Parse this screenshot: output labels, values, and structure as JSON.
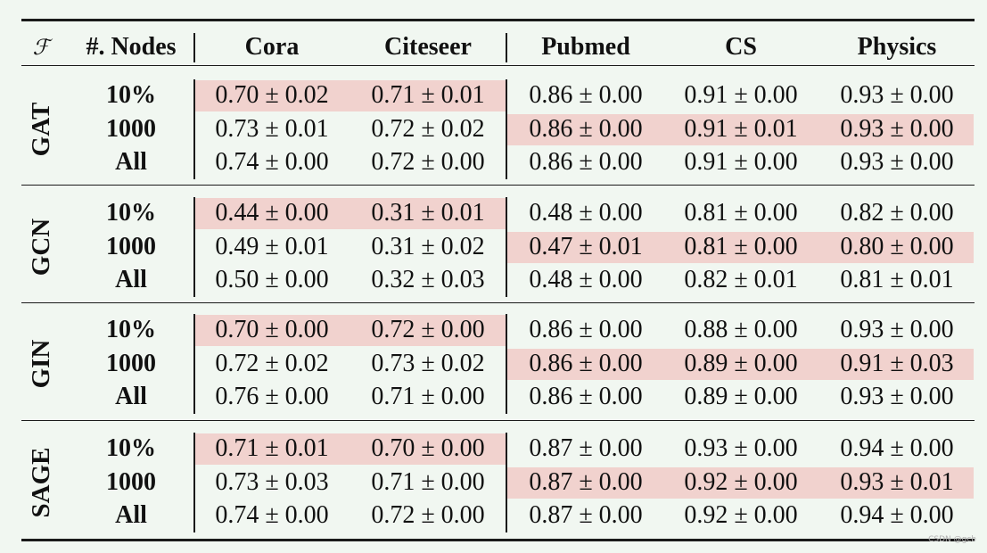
{
  "header": {
    "f_symbol": "ℱ",
    "nodes_label": "#. Nodes",
    "datasets": [
      "Cora",
      "Citeseer",
      "Pubmed",
      "CS",
      "Physics"
    ]
  },
  "groups": [
    {
      "model": "GAT",
      "rows": [
        {
          "nodes": "10%",
          "values": [
            "0.70 ± 0.02",
            "0.71 ± 0.01",
            "0.86 ± 0.00",
            "0.91 ± 0.00",
            "0.93 ± 0.00"
          ]
        },
        {
          "nodes": "1000",
          "values": [
            "0.73 ± 0.01",
            "0.72 ± 0.02",
            "0.86 ± 0.00",
            "0.91 ± 0.01",
            "0.93 ± 0.00"
          ]
        },
        {
          "nodes": "All",
          "values": [
            "0.74 ± 0.00",
            "0.72 ± 0.00",
            "0.86 ± 0.00",
            "0.91 ± 0.00",
            "0.93 ± 0.00"
          ]
        }
      ]
    },
    {
      "model": "GCN",
      "rows": [
        {
          "nodes": "10%",
          "values": [
            "0.44 ± 0.00",
            "0.31 ± 0.01",
            "0.48 ± 0.00",
            "0.81 ± 0.00",
            "0.82 ± 0.00"
          ]
        },
        {
          "nodes": "1000",
          "values": [
            "0.49 ± 0.01",
            "0.31 ± 0.02",
            "0.47 ± 0.01",
            "0.81 ± 0.00",
            "0.80 ± 0.00"
          ]
        },
        {
          "nodes": "All",
          "values": [
            "0.50 ± 0.00",
            "0.32 ± 0.03",
            "0.48 ± 0.00",
            "0.82 ± 0.01",
            "0.81 ± 0.01"
          ]
        }
      ]
    },
    {
      "model": "GIN",
      "rows": [
        {
          "nodes": "10%",
          "values": [
            "0.70 ± 0.00",
            "0.72 ± 0.00",
            "0.86 ± 0.00",
            "0.88 ± 0.00",
            "0.93 ± 0.00"
          ]
        },
        {
          "nodes": "1000",
          "values": [
            "0.72 ± 0.02",
            "0.73 ± 0.02",
            "0.86 ± 0.00",
            "0.89 ± 0.00",
            "0.91 ± 0.03"
          ]
        },
        {
          "nodes": "All",
          "values": [
            "0.76 ± 0.00",
            "0.71 ± 0.00",
            "0.86 ± 0.00",
            "0.89 ± 0.00",
            "0.93 ± 0.00"
          ]
        }
      ]
    },
    {
      "model": "SAGE",
      "rows": [
        {
          "nodes": "10%",
          "values": [
            "0.71 ± 0.01",
            "0.70 ± 0.00",
            "0.87 ± 0.00",
            "0.93 ± 0.00",
            "0.94 ± 0.00"
          ]
        },
        {
          "nodes": "1000",
          "values": [
            "0.73 ± 0.03",
            "0.71 ± 0.00",
            "0.87 ± 0.00",
            "0.92 ± 0.00",
            "0.93 ± 0.01"
          ]
        },
        {
          "nodes": "All",
          "values": [
            "0.74 ± 0.00",
            "0.72 ± 0.00",
            "0.87 ± 0.00",
            "0.92 ± 0.00",
            "0.94 ± 0.00"
          ]
        }
      ]
    }
  ],
  "highlights": {
    "color": "#f1d2ce",
    "rule": "Cora and Citeseer highlighted on 10% row; Pubmed, CS and Physics highlighted on 1000 row"
  },
  "watermark": "CSDN @gcb"
}
